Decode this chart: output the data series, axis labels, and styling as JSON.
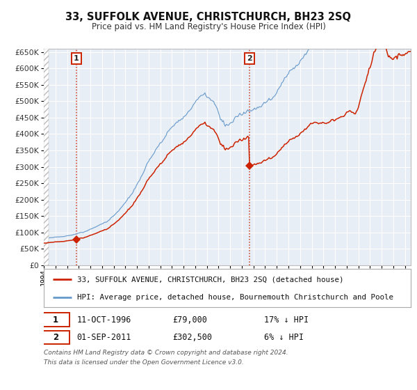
{
  "title": "33, SUFFOLK AVENUE, CHRISTCHURCH, BH23 2SQ",
  "subtitle": "Price paid vs. HM Land Registry's House Price Index (HPI)",
  "sale1_date": "11-OCT-1996",
  "sale1_price": 79000,
  "sale1_hpi_diff": "17% ↓ HPI",
  "sale2_date": "01-SEP-2011",
  "sale2_price": 302500,
  "sale2_hpi_diff": "6% ↓ HPI",
  "sale1_year": 1996.79,
  "sale2_year": 2011.67,
  "legend_line1": "33, SUFFOLK AVENUE, CHRISTCHURCH, BH23 2SQ (detached house)",
  "legend_line2": "HPI: Average price, detached house, Bournemouth Christchurch and Poole",
  "footnote1": "Contains HM Land Registry data © Crown copyright and database right 2024.",
  "footnote2": "This data is licensed under the Open Government Licence v3.0.",
  "hpi_color": "#6699cc",
  "price_color": "#cc2200",
  "background_color": "#ffffff",
  "plot_bg_color": "#e8eef5",
  "grid_color": "#ffffff",
  "ylim": [
    0,
    660000
  ],
  "xlim_start": 1994.0,
  "xlim_end": 2025.5,
  "ytick_step": 50000
}
